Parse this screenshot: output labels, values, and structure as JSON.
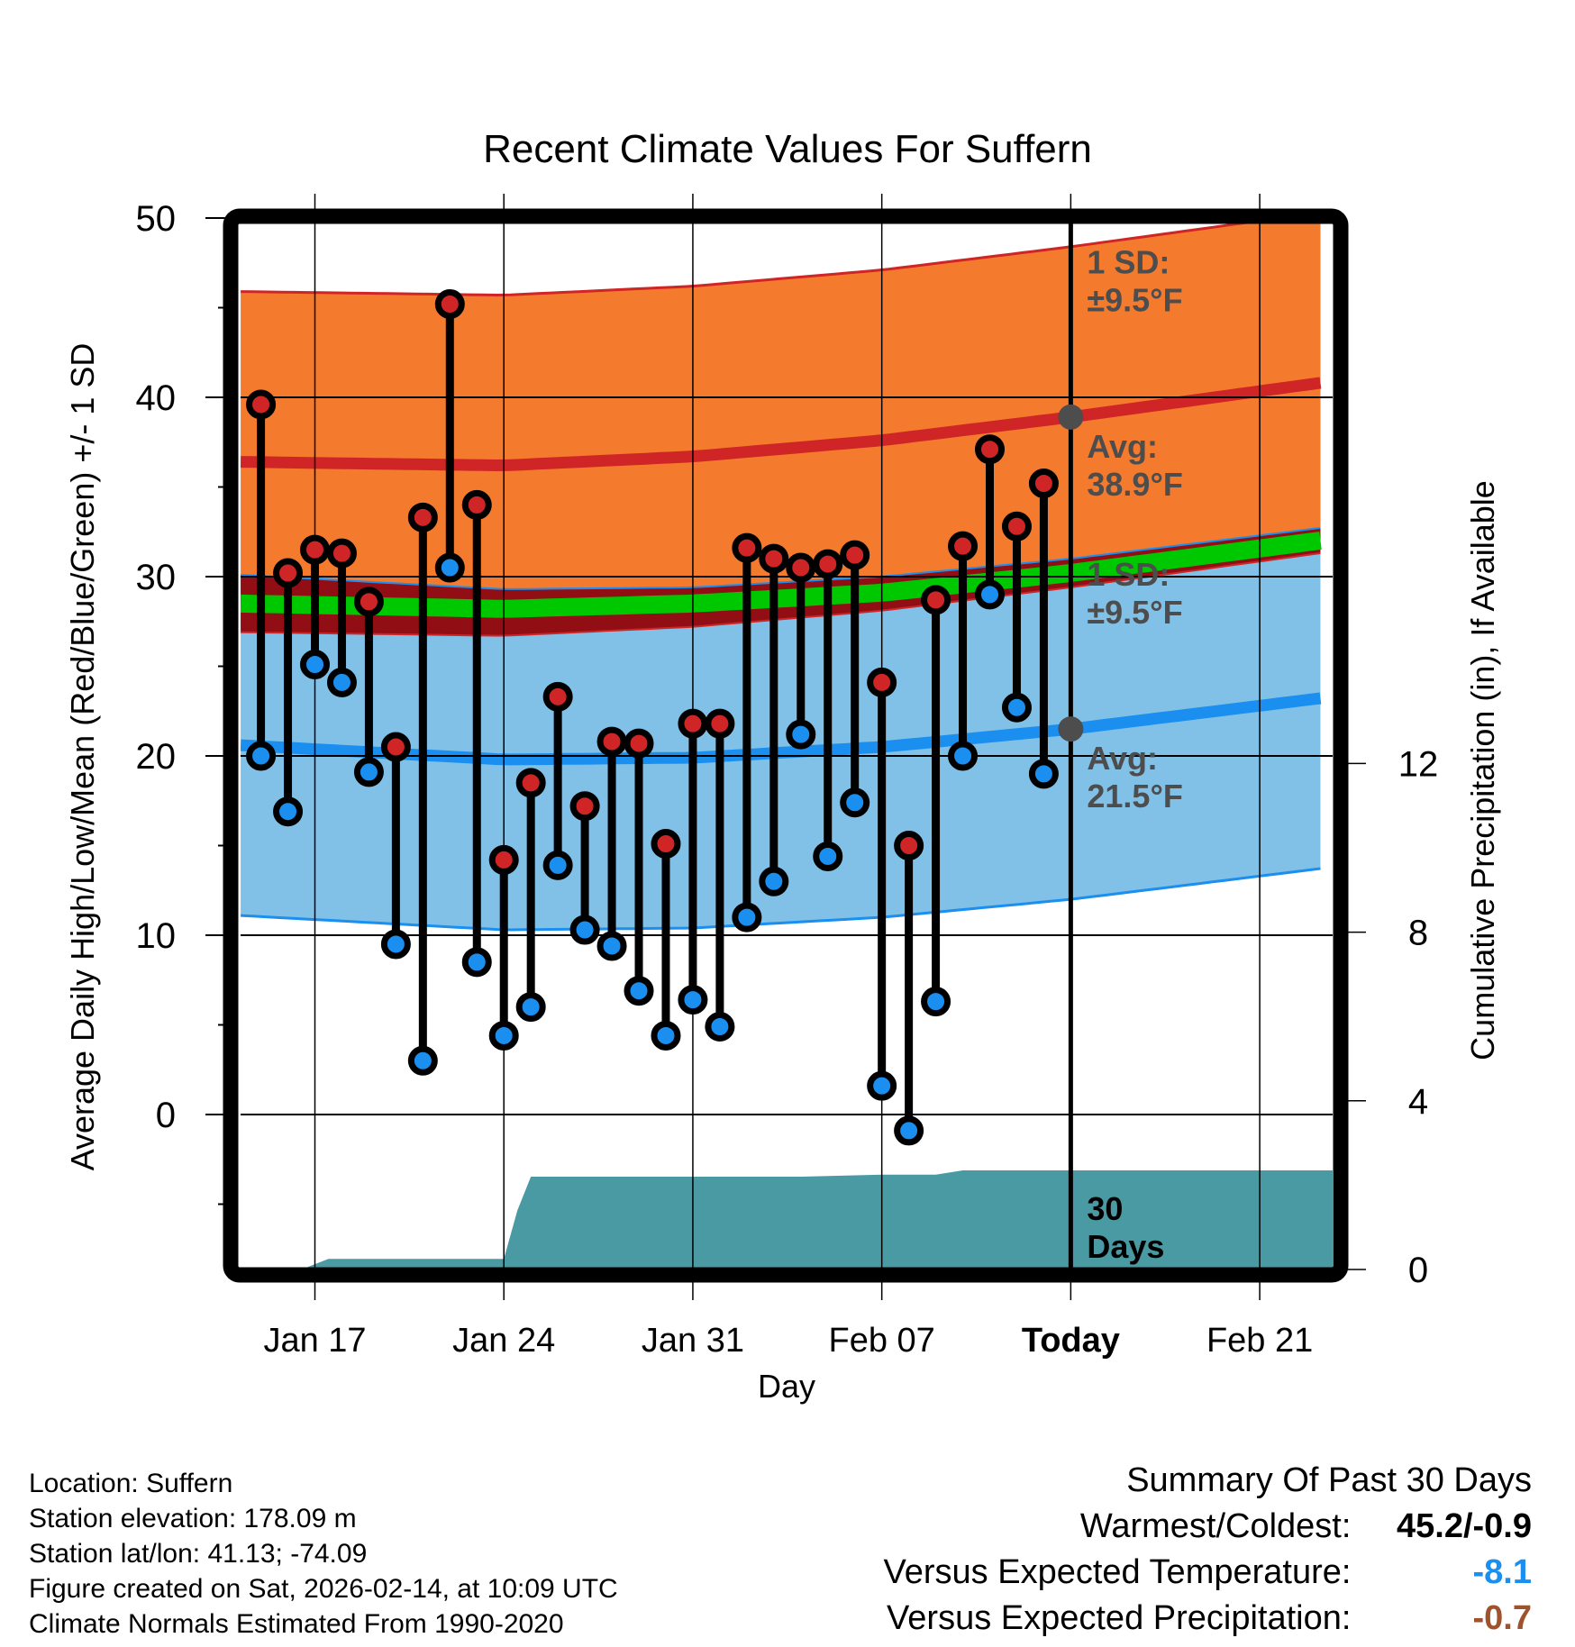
{
  "chart_data": {
    "type": "line",
    "title": "Recent Climate Values For Suffern",
    "xlabel": "Day",
    "ylabel": "Average Daily High/Low/Mean (Red/Blue/Green) +/- 1 SD",
    "y2label": "Cumulative Precipitation (in), If Available",
    "ylim": [
      -8.5,
      50
    ],
    "y2lim": [
      0,
      13
    ],
    "yticks": [
      50,
      40,
      30,
      20,
      10,
      0
    ],
    "y2ticks": [
      12,
      8,
      4,
      0
    ],
    "xlim_days_from_jan17": [
      -2.75,
      37.7
    ],
    "xticks": [
      {
        "label": "Jan 17",
        "day": 0,
        "bold": false
      },
      {
        "label": "Jan 24",
        "day": 7,
        "bold": false
      },
      {
        "label": "Jan 31",
        "day": 14,
        "bold": false
      },
      {
        "label": "Feb 07",
        "day": 21,
        "bold": false
      },
      {
        "label": "Today",
        "day": 28,
        "bold": true
      },
      {
        "label": "Feb 21",
        "day": 35,
        "bold": false
      }
    ],
    "grid": true,
    "today_day": 28,
    "observed": {
      "dates": [
        "Jan 15",
        "Jan 16",
        "Jan 17",
        "Jan 18",
        "Jan 19",
        "Jan 20",
        "Jan 21",
        "Jan 22",
        "Jan 23",
        "Jan 24",
        "Jan 25",
        "Jan 26",
        "Jan 27",
        "Jan 28",
        "Jan 29",
        "Jan 30",
        "Jan 31",
        "Feb 01",
        "Feb 02",
        "Feb 03",
        "Feb 04",
        "Feb 05",
        "Feb 06",
        "Feb 07",
        "Feb 08",
        "Feb 09",
        "Feb 10",
        "Feb 11",
        "Feb 12",
        "Feb 13"
      ],
      "days": [
        -2,
        -1,
        0,
        1,
        2,
        3,
        4,
        5,
        6,
        7,
        8,
        9,
        10,
        11,
        12,
        13,
        14,
        15,
        16,
        17,
        18,
        19,
        20,
        21,
        22,
        23,
        24,
        25,
        26,
        27
      ],
      "high": [
        39.6,
        30.2,
        31.5,
        31.3,
        28.6,
        20.5,
        33.3,
        45.2,
        34.0,
        14.2,
        18.5,
        23.3,
        17.2,
        20.8,
        20.7,
        15.1,
        21.8,
        21.8,
        31.6,
        31.0,
        30.5,
        30.7,
        31.2,
        24.1,
        15.0,
        28.7,
        31.7,
        37.1,
        32.8,
        35.2
      ],
      "low": [
        20.0,
        16.9,
        25.1,
        24.1,
        19.1,
        9.5,
        3.0,
        30.5,
        8.5,
        4.4,
        6.0,
        13.9,
        10.3,
        9.4,
        6.9,
        4.4,
        6.4,
        4.9,
        11.0,
        13.0,
        21.2,
        14.4,
        17.4,
        1.6,
        -0.9,
        6.3,
        20.0,
        29.0,
        22.7,
        19.0
      ]
    },
    "normals": {
      "days": [
        -2.75,
        7,
        14,
        21,
        28,
        37.7
      ],
      "high_avg": [
        36.4,
        36.2,
        36.7,
        37.6,
        38.9,
        40.9
      ],
      "low_avg": [
        20.6,
        19.8,
        19.9,
        20.5,
        21.5,
        23.3
      ],
      "mean_avg": [
        28.5,
        28.2,
        28.5,
        29.1,
        30.2,
        32.1
      ],
      "high_sd": 9.5,
      "low_sd": 9.5
    },
    "precipitation": {
      "days": [
        -0.5,
        0.5,
        7,
        7.5,
        8,
        18,
        21,
        23,
        24,
        28,
        37.7
      ],
      "cumulative_in": [
        0,
        0.25,
        0.25,
        1.4,
        2.2,
        2.2,
        2.25,
        2.25,
        2.35,
        2.35,
        2.35
      ]
    },
    "annotations": {
      "high_sd": {
        "line1": "1 SD:",
        "line2": "±9.5°F"
      },
      "high_avg": {
        "line1": "Avg:",
        "line2": "38.9°F",
        "value": 38.9
      },
      "low_sd": {
        "line1": "1 SD:",
        "line2": "±9.5°F"
      },
      "low_avg": {
        "line1": "Avg:",
        "line2": "21.5°F",
        "value": 21.5
      },
      "precip_window": {
        "line1": "30",
        "line2": "Days"
      }
    },
    "colors": {
      "high_band": "#f47a2e",
      "high_line": "#cf2526",
      "low_band": "#82c1e7",
      "low_line": "#1b8ff0",
      "overlap": "#920e15",
      "mean_line": "#00c800",
      "precip": "#4a9aa3",
      "high_marker": "#cf2526",
      "low_marker": "#1b8ff0",
      "annotation": "#4d4d4d"
    }
  },
  "footer": {
    "location": "Location: Suffern",
    "elevation": "Station elevation: 178.09 m",
    "latlon": "Station lat/lon: 41.13; -74.09",
    "created": "Figure created on Sat, 2026-02-14, at 10:09 UTC",
    "normals": "Climate Normals Estimated From 1990-2020"
  },
  "summary": {
    "title": "Summary Of Past 30 Days",
    "warmest_label": "Warmest/Coldest:",
    "warmest_value": "45.2/-0.9",
    "temp_label": "Versus Expected Temperature:",
    "temp_value": "-8.1",
    "temp_color": "#1b8ff0",
    "precip_label": "Versus Expected Precipitation:",
    "precip_value": "-0.7",
    "precip_color": "#a0522d"
  }
}
